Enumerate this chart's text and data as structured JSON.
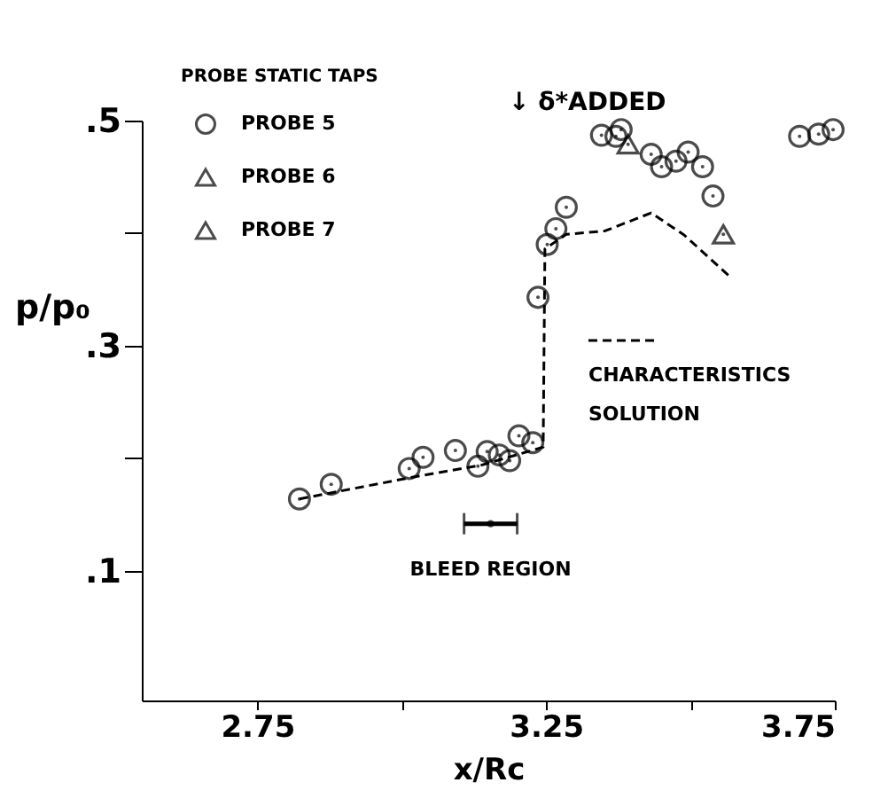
{
  "chart_data": {
    "type": "scatter",
    "xlabel": "x/Rc",
    "ylabel": "p/p₀",
    "legend_title": "PROBE STATIC TAPS",
    "legend": "top left",
    "grid": false,
    "xlim": [
      2.55,
      3.75
    ],
    "ylim": [
      -0.015,
      0.5
    ],
    "xticks": [
      2.75,
      {
        "value": 3.0,
        "label": null
      },
      3.25,
      {
        "value": 3.5,
        "label": null
      },
      3.75
    ],
    "yticks": [
      {
        "value": 0.1,
        "label": ".1"
      },
      {
        "value": 0.2,
        "label": null
      },
      {
        "value": 0.3,
        "label": ".3"
      },
      {
        "value": 0.4,
        "label": null
      },
      {
        "value": 0.5,
        "label": ".5"
      }
    ],
    "annotations": [
      "↓ δ*ADDED",
      {
        "text": "BLEED REGION",
        "x": 3.154,
        "y": 0.142
      }
    ],
    "series": [
      {
        "name": "PROBE 5",
        "marker": "circle",
        "color": "#000000",
        "x": [
          2.823,
          2.878,
          3.013,
          3.037,
          3.093,
          3.132,
          3.148,
          3.169,
          3.187,
          3.203,
          3.227,
          3.236,
          3.252,
          3.267,
          3.285,
          3.346,
          3.371,
          3.38,
          3.432,
          3.45,
          3.475,
          3.496,
          3.521,
          3.539,
          3.689,
          3.722,
          3.747
        ],
        "values": [
          0.164,
          0.177,
          0.191,
          0.201,
          0.207,
          0.193,
          0.206,
          0.203,
          0.198,
          0.22,
          0.214,
          0.343,
          0.39,
          0.404,
          0.423,
          0.487,
          0.486,
          0.492,
          0.47,
          0.459,
          0.464,
          0.472,
          0.459,
          0.433,
          0.486,
          0.488,
          0.492
        ]
      },
      {
        "name": "PROBE 6",
        "marker": "triangle",
        "color": "#000000",
        "x": [
          3.392
        ],
        "values": [
          0.479
        ]
      },
      {
        "name": "PROBE 7",
        "marker": "triangle",
        "color": "#000000",
        "x": [
          3.557
        ],
        "values": [
          0.399
        ]
      },
      {
        "marker": "circle",
        "color": "#000000",
        "x": [
          3.154
        ],
        "values": [
          0.142
        ],
        "xerrors": [
          [
            3.108,
            3.2
          ]
        ]
      },
      {
        "name": "CHARACTERISTICS SOLUTION",
        "type": "line",
        "line_style": "dashed",
        "marker": "none",
        "color": "#000000",
        "x": [
          2.823,
          3.016,
          3.138,
          3.245,
          3.248,
          3.285,
          3.352,
          3.432,
          3.49,
          3.567
        ],
        "values": [
          0.164,
          0.183,
          0.194,
          0.21,
          0.386,
          0.399,
          0.402,
          0.418,
          0.398,
          0.362
        ]
      }
    ]
  }
}
